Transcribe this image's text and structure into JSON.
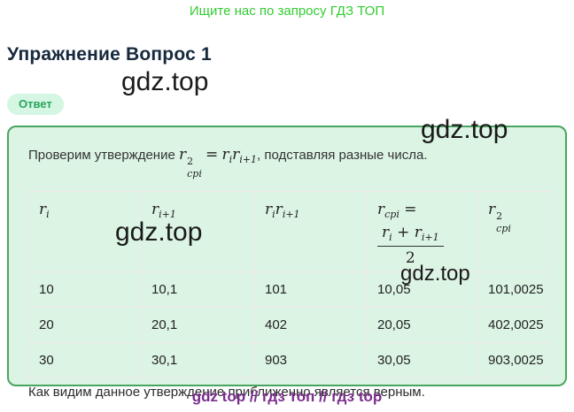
{
  "page": {
    "top_link": "Ищите нас по запросу ГДЗ ТОП",
    "title": "Упражнение Вопрос 1",
    "answer_badge": "Ответ",
    "footer": "gdz top  //  гдз топ  //  гдз top"
  },
  "watermarks": {
    "wm1": "gdz.top",
    "wm2": "gdz.top",
    "wm3": "gdz.top",
    "wm4": "gdz.top"
  },
  "statement": {
    "prefix": "Проверим утверждение",
    "lhs": {
      "base": "r",
      "sup": "2",
      "sub": "cpi"
    },
    "eq": "=",
    "rhs": {
      "b1": "r",
      "s1": "i",
      "b2": "r",
      "s2": "i+1"
    },
    "suffix": ", подставляя разные числа."
  },
  "table": {
    "headers": {
      "h1": {
        "base": "r",
        "sub": "i"
      },
      "h2": {
        "base": "r",
        "sub": "i+1"
      },
      "h3": {
        "b1": "r",
        "s1": "i",
        "b2": "r",
        "s2": "i+1"
      },
      "h4": {
        "base": "r",
        "sub": "cpi",
        "eq": "=",
        "num": {
          "b1": "r",
          "s1": "i",
          "plus": "+",
          "b2": "r",
          "s2": "i+1"
        },
        "den": "2"
      },
      "h5": {
        "base": "r",
        "sup": "2",
        "sub": "cpi"
      }
    },
    "rows": [
      [
        "10",
        "10,1",
        "101",
        "10,05",
        "101,0025"
      ],
      [
        "20",
        "20,1",
        "402",
        "20,05",
        "402,0025"
      ],
      [
        "30",
        "30,1",
        "903",
        "30,05",
        "903,0025"
      ]
    ]
  },
  "conclusion": "Как видим данное утверждение приближенно является верным."
}
